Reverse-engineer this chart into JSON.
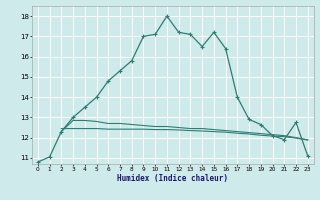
{
  "xlabel": "Humidex (Indice chaleur)",
  "ylabel": "",
  "xlim": [
    -0.5,
    23.5
  ],
  "ylim": [
    10.7,
    18.5
  ],
  "bg_color": "#ceeaea",
  "grid_color": "#ffffff",
  "line_color": "#2e7d72",
  "line1_x": [
    0,
    1,
    2,
    3,
    4,
    5,
    6,
    7,
    8,
    9,
    10,
    11,
    12,
    13,
    14,
    15,
    16,
    17,
    18,
    19,
    20,
    21,
    22,
    23
  ],
  "line1_y": [
    10.8,
    11.05,
    12.3,
    13.0,
    13.5,
    14.0,
    14.8,
    15.3,
    15.8,
    17.0,
    17.1,
    18.0,
    17.2,
    17.1,
    16.5,
    17.2,
    16.4,
    14.0,
    12.9,
    12.65,
    12.1,
    11.9,
    12.75,
    11.1
  ],
  "line2_x": [
    2,
    3,
    4,
    5,
    6,
    7,
    8,
    9,
    10,
    11,
    12,
    13,
    14,
    15,
    16,
    17,
    18,
    19,
    20,
    21,
    22,
    23
  ],
  "line2_y": [
    12.3,
    12.85,
    12.85,
    12.8,
    12.7,
    12.7,
    12.65,
    12.6,
    12.55,
    12.55,
    12.5,
    12.45,
    12.45,
    12.4,
    12.35,
    12.3,
    12.25,
    12.2,
    12.15,
    12.1,
    12.0,
    11.9
  ],
  "line3_x": [
    2,
    3,
    4,
    5,
    6,
    7,
    8,
    9,
    10,
    11,
    12,
    13,
    14,
    15,
    16,
    17,
    18,
    19,
    20,
    21,
    22,
    23
  ],
  "line3_y": [
    12.45,
    12.45,
    12.45,
    12.45,
    12.42,
    12.42,
    12.42,
    12.42,
    12.4,
    12.4,
    12.38,
    12.35,
    12.33,
    12.3,
    12.27,
    12.22,
    12.18,
    12.12,
    12.08,
    12.05,
    11.98,
    11.88
  ],
  "yticks": [
    11,
    12,
    13,
    14,
    15,
    16,
    17,
    18
  ],
  "xticks": [
    0,
    1,
    2,
    3,
    4,
    5,
    6,
    7,
    8,
    9,
    10,
    11,
    12,
    13,
    14,
    15,
    16,
    17,
    18,
    19,
    20,
    21,
    22,
    23
  ]
}
